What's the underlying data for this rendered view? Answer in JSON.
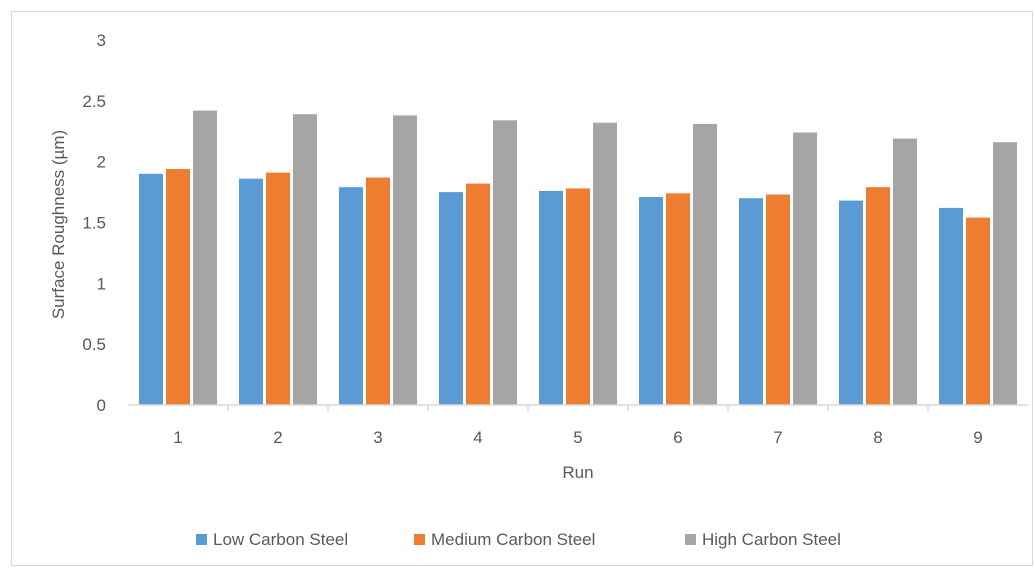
{
  "chart_data": {
    "type": "bar",
    "title": "",
    "xlabel": "Run",
    "ylabel": "Surface Roughness (µm)",
    "ylim": [
      0,
      3
    ],
    "yticks": [
      "0",
      "0.5",
      "1",
      "1.5",
      "2",
      "2.5",
      "3"
    ],
    "categories": [
      "1",
      "2",
      "3",
      "4",
      "5",
      "6",
      "7",
      "8",
      "9"
    ],
    "grid": false,
    "legend_position": "bottom",
    "series": [
      {
        "name": "Low Carbon Steel",
        "color": "#5b9bd5",
        "values": [
          1.9,
          1.86,
          1.79,
          1.75,
          1.76,
          1.71,
          1.7,
          1.68,
          1.62
        ]
      },
      {
        "name": "Medium Carbon Steel",
        "color": "#ed7d31",
        "values": [
          1.94,
          1.91,
          1.87,
          1.82,
          1.78,
          1.74,
          1.73,
          1.79,
          1.54
        ]
      },
      {
        "name": "High Carbon Steel",
        "color": "#a5a5a5",
        "values": [
          2.42,
          2.39,
          2.38,
          2.34,
          2.32,
          2.31,
          2.24,
          2.19,
          2.16
        ]
      }
    ]
  }
}
